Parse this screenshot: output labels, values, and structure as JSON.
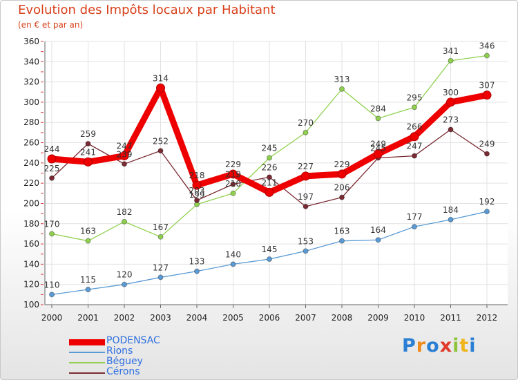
{
  "header": {
    "title": "Evolution des Impôts locaux par Habitant",
    "subtitle": "(en € et par an)"
  },
  "chart_data": {
    "type": "line",
    "title": "Evolution des Impôts locaux par Habitant",
    "subtitle": "(en € et par an)",
    "xlabel": "",
    "ylabel": "",
    "ylim": [
      100,
      360
    ],
    "yticks": [
      100,
      120,
      140,
      160,
      180,
      200,
      220,
      240,
      260,
      280,
      300,
      320,
      340,
      360
    ],
    "categories": [
      "2000",
      "2001",
      "2002",
      "2003",
      "2004",
      "2005",
      "2006",
      "2007",
      "2008",
      "2009",
      "2010",
      "2011",
      "2012"
    ],
    "grid": true,
    "legend_position": "bottom-left",
    "series": [
      {
        "name": "Rions",
        "color": "#5b9bd5",
        "values": [
          110,
          115,
          120,
          127,
          133,
          140,
          145,
          153,
          163,
          164,
          177,
          184,
          192
        ]
      },
      {
        "name": "Béguey",
        "color": "#8fd14f",
        "values": [
          170,
          163,
          182,
          167,
          199,
          210,
          245,
          270,
          313,
          284,
          295,
          341,
          346
        ]
      },
      {
        "name": "Cérons",
        "color": "#7a2a32",
        "values": [
          225,
          259,
          239,
          252,
          203,
          219,
          226,
          197,
          206,
          245,
          247,
          273,
          249
        ]
      },
      {
        "name": "PODENSAC",
        "color": "#ee0000",
        "values": [
          244,
          241,
          247,
          314,
          218,
          229,
          211,
          227,
          229,
          249,
          266,
          300,
          307
        ]
      }
    ]
  },
  "legend": {
    "items": [
      {
        "label": "PODENSAC",
        "color": "#ee0000"
      },
      {
        "label": "Rions",
        "color": "#5b9bd5"
      },
      {
        "label": "Béguey",
        "color": "#8fd14f"
      },
      {
        "label": "Cérons",
        "color": "#7a2a32"
      }
    ]
  },
  "brand": {
    "letters": [
      "P",
      "r",
      "o",
      "x",
      "i",
      "t",
      "i"
    ],
    "colors": [
      "#2a7fd4",
      "#f08a1c",
      "#2a7fd4",
      "#e03a2a",
      "#8fc43a",
      "#f0b41c",
      "#2a7fd4"
    ]
  }
}
